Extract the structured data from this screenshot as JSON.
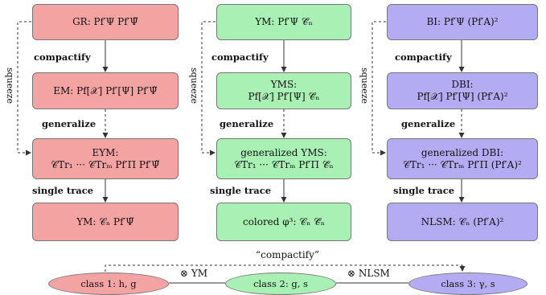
{
  "columns": [
    {
      "id": "gr",
      "boxes": [
        "GR: Pf′Ψ Pf′Ψ̃",
        "EM: Pf[𝒳] Pf′[Ψ] Pf′Ψ̃",
        "EYM:|𝒞Tr₁ ··· 𝒞Trₘ Pf′Π Pf′Ψ̃",
        "YM: 𝒞ₙ Pf′Ψ̃"
      ]
    },
    {
      "id": "ym",
      "boxes": [
        "YM: Pf′Ψ 𝒞̃ₙ",
        "YMS:|Pf[𝒳] Pf′[Ψ] 𝒞̃ₙ",
        "generalized YMS:|𝒞Tr₁ ··· 𝒞Trₘ Pf′Π 𝒞̃ₙ",
        "colored φ³: 𝒞ₙ 𝒞̃ₙ"
      ]
    },
    {
      "id": "bi",
      "boxes": [
        "BI: Pf′Ψ (Pf′A)²",
        "DBI:|Pf[𝒳] Pf′[Ψ] (Pf′A)²",
        "generalized DBI:|𝒞Tr₁ ··· 𝒞Trₘ Pf′Π (Pf′A)²",
        "NLSM: 𝒞ₙ (Pf′A)²"
      ]
    }
  ],
  "edge_labels": {
    "compactify": "compactify",
    "generalize": "generalize",
    "single_trace": "single trace",
    "squeeze": "squeeze"
  },
  "bottom": {
    "top_label": "“compactify”",
    "class1": "class 1: h, g",
    "class2": "class 2: g, s",
    "class3": "class 3: γ, s",
    "op_left": "⊗ YM",
    "op_right": "⊗ NLSM"
  },
  "colors": {
    "red": "#f4a3a3",
    "green": "#a8f0b4",
    "blue": "#b4acf2"
  }
}
